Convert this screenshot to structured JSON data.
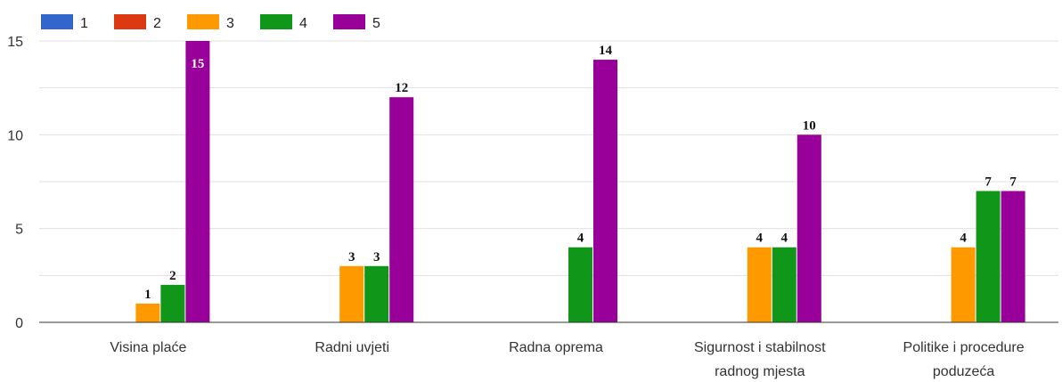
{
  "chart_data": {
    "type": "bar",
    "categories": [
      [
        "Visina plaće"
      ],
      [
        "Radni uvjeti"
      ],
      [
        "Radna oprema"
      ],
      [
        "Sigurnost i stabilnost",
        "radnog mjesta"
      ],
      [
        "Politike i procedure",
        "poduzeća"
      ]
    ],
    "series": [
      {
        "name": "1",
        "color": "#3366cc",
        "values": [
          0,
          0,
          0,
          0,
          0
        ]
      },
      {
        "name": "2",
        "color": "#dc3912",
        "values": [
          0,
          0,
          0,
          0,
          0
        ]
      },
      {
        "name": "3",
        "color": "#ff9900",
        "values": [
          1,
          3,
          0,
          4,
          4
        ]
      },
      {
        "name": "4",
        "color": "#109618",
        "values": [
          2,
          3,
          4,
          4,
          7
        ]
      },
      {
        "name": "5",
        "color": "#990099",
        "values": [
          15,
          12,
          14,
          10,
          7
        ]
      }
    ],
    "y_ticks": [
      0,
      5,
      10,
      15
    ],
    "ylim": [
      0,
      15
    ],
    "grid": true,
    "legend_position": "top-left"
  }
}
